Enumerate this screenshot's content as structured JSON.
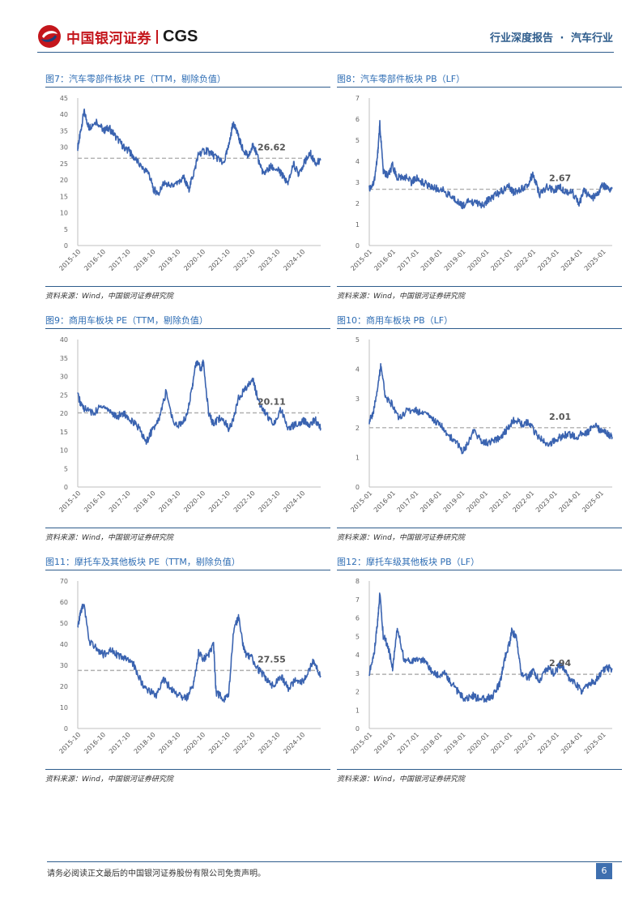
{
  "header": {
    "brand_cn": "中国银河证券",
    "brand_en": "CGS",
    "report_type": "行业深度报告",
    "separator": "·",
    "industry": "汽车行业"
  },
  "footer": {
    "disclaimer": "请务必阅读正文最后的中国银河证券股份有限公司免责声明。",
    "page_number": "6"
  },
  "colors": {
    "line": "#3a63b0",
    "avg": "#b0b0b0",
    "accent": "#2e5c8c"
  },
  "charts": [
    {
      "id": "fig7",
      "title": "图7：汽车零部件板块 PE（TTM，剔除负值）",
      "source": "资料来源：Wind，中国银河证券研究院",
      "chart_data": {
        "type": "line",
        "ylim": [
          0,
          45
        ],
        "yticks": [
          0,
          5,
          10,
          15,
          20,
          25,
          30,
          35,
          40,
          45
        ],
        "xlabels": [
          "2015-10",
          "2016-10",
          "2017-10",
          "2018-10",
          "2019-10",
          "2020-10",
          "2021-10",
          "2022-10",
          "2023-10",
          "2024-10"
        ],
        "x": [
          2015.75,
          2015.85,
          2016.0,
          2016.2,
          2016.5,
          2016.8,
          2017.0,
          2017.3,
          2017.6,
          2017.8,
          2018.0,
          2018.3,
          2018.6,
          2018.8,
          2019.0,
          2019.2,
          2019.5,
          2019.8,
          2020.0,
          2020.2,
          2020.4,
          2020.6,
          2020.9,
          2021.1,
          2021.3,
          2021.6,
          2021.8,
          2022.0,
          2022.2,
          2022.4,
          2022.6,
          2022.8,
          2023.0,
          2023.2,
          2023.5,
          2023.8,
          2024.0,
          2024.2,
          2024.4,
          2024.6,
          2024.9,
          2025.1,
          2025.3,
          2025.5
        ],
        "values": [
          30,
          34,
          41,
          36,
          38,
          35,
          36,
          33,
          30,
          29,
          27,
          24,
          22,
          17,
          16,
          19,
          18,
          19,
          21,
          17,
          22,
          28,
          29,
          28,
          27,
          25,
          30,
          38,
          33,
          29,
          27,
          31,
          26,
          22,
          24,
          23,
          21,
          19,
          25,
          22,
          26,
          28,
          25,
          26
        ],
        "avg": 26.62,
        "avg_label": "26.62"
      }
    },
    {
      "id": "fig8",
      "title": "图8：汽车零部件板块 PB（LF）",
      "source": "资料来源：Wind，中国银河证券研究院",
      "chart_data": {
        "type": "line",
        "ylim": [
          0,
          7
        ],
        "yticks": [
          0,
          1,
          2,
          3,
          4,
          5,
          6,
          7
        ],
        "xlabels": [
          "2015-01",
          "2016-01",
          "2017-01",
          "2018-01",
          "2019-01",
          "2020-01",
          "2021-01",
          "2022-01",
          "2023-01",
          "2024-01",
          "2025-01"
        ],
        "x": [
          2015.0,
          2015.2,
          2015.35,
          2015.45,
          2015.6,
          2015.8,
          2016.0,
          2016.2,
          2016.5,
          2016.8,
          2017.0,
          2017.3,
          2017.6,
          2017.9,
          2018.2,
          2018.5,
          2018.8,
          2019.0,
          2019.3,
          2019.6,
          2019.9,
          2020.1,
          2020.4,
          2020.7,
          2021.0,
          2021.2,
          2021.5,
          2021.8,
          2022.0,
          2022.3,
          2022.6,
          2022.9,
          2023.1,
          2023.4,
          2023.7,
          2024.0,
          2024.2,
          2024.5,
          2024.8,
          2025.0,
          2025.2,
          2025.4
        ],
        "values": [
          2.7,
          3.0,
          4.2,
          5.8,
          3.5,
          3.3,
          3.8,
          3.2,
          3.3,
          3.0,
          3.2,
          3.0,
          2.8,
          2.7,
          2.6,
          2.3,
          2.1,
          1.9,
          2.1,
          2.0,
          1.9,
          2.2,
          2.4,
          2.6,
          2.8,
          2.5,
          2.7,
          2.9,
          3.4,
          2.4,
          2.8,
          2.6,
          2.8,
          2.6,
          2.5,
          2.0,
          2.6,
          2.2,
          2.5,
          2.9,
          2.7,
          2.7
        ],
        "avg": 2.67,
        "avg_label": "2.67"
      }
    },
    {
      "id": "fig9",
      "title": "图9：商用车板块 PE（TTM，剔除负值）",
      "source": "资料来源：Wind，中国银河证券研究院",
      "chart_data": {
        "type": "line",
        "ylim": [
          0,
          40
        ],
        "yticks": [
          0,
          5,
          10,
          15,
          20,
          25,
          30,
          35,
          40
        ],
        "xlabels": [
          "2015-10",
          "2016-10",
          "2017-10",
          "2018-10",
          "2019-10",
          "2020-10",
          "2021-10",
          "2022-10",
          "2023-10",
          "2024-10"
        ],
        "x": [
          2015.75,
          2015.9,
          2016.1,
          2016.4,
          2016.7,
          2017.0,
          2017.3,
          2017.6,
          2017.9,
          2018.2,
          2018.5,
          2018.7,
          2019.0,
          2019.3,
          2019.6,
          2019.9,
          2020.1,
          2020.35,
          2020.5,
          2020.7,
          2020.8,
          2021.0,
          2021.2,
          2021.5,
          2021.8,
          2022.0,
          2022.2,
          2022.5,
          2022.8,
          2023.0,
          2023.3,
          2023.6,
          2023.9,
          2024.2,
          2024.5,
          2024.8,
          2025.0,
          2025.3,
          2025.5
        ],
        "values": [
          25,
          22,
          21,
          20,
          22,
          21,
          19,
          20,
          18,
          16,
          12,
          15,
          18,
          26,
          17,
          17,
          19,
          27,
          34,
          32,
          34,
          20,
          17,
          19,
          16,
          18,
          24,
          27,
          29,
          23,
          20,
          17,
          21,
          16,
          17,
          18,
          17,
          18,
          16
        ],
        "avg": 20.11,
        "avg_label": "20.11"
      }
    },
    {
      "id": "fig10",
      "title": "图10：商用车板块 PB（LF）",
      "source": "资料来源：Wind，中国银河证券研究院",
      "chart_data": {
        "type": "line",
        "ylim": [
          0,
          5
        ],
        "yticks": [
          0,
          1,
          2,
          3,
          4,
          5
        ],
        "xlabels": [
          "2015-01",
          "2016-01",
          "2017-01",
          "2018-01",
          "2019-01",
          "2020-01",
          "2021-01",
          "2022-01",
          "2023-01",
          "2024-01",
          "2025-01"
        ],
        "x": [
          2015.0,
          2015.2,
          2015.4,
          2015.5,
          2015.7,
          2016.0,
          2016.3,
          2016.6,
          2017.0,
          2017.3,
          2017.6,
          2017.9,
          2018.2,
          2018.5,
          2018.8,
          2019.0,
          2019.2,
          2019.5,
          2019.8,
          2020.1,
          2020.4,
          2020.7,
          2021.0,
          2021.3,
          2021.6,
          2021.9,
          2022.2,
          2022.5,
          2022.8,
          2023.0,
          2023.3,
          2023.6,
          2023.9,
          2024.2,
          2024.5,
          2024.8,
          2025.0,
          2025.3,
          2025.5
        ],
        "values": [
          2.2,
          2.6,
          3.6,
          4.1,
          3.0,
          2.8,
          2.3,
          2.6,
          2.6,
          2.5,
          2.4,
          2.2,
          2.0,
          1.7,
          1.5,
          1.2,
          1.4,
          1.9,
          1.6,
          1.5,
          1.6,
          1.7,
          2.0,
          2.3,
          2.1,
          2.2,
          1.8,
          1.6,
          1.4,
          1.6,
          1.7,
          1.8,
          1.7,
          1.8,
          1.9,
          2.1,
          1.9,
          1.8,
          1.7
        ],
        "avg": 2.01,
        "avg_label": "2.01"
      }
    },
    {
      "id": "fig11",
      "title": "图11：摩托车及其他板块 PE（TTM，剔除负值）",
      "source": "资料来源：Wind，中国银河证券研究院",
      "chart_data": {
        "type": "line",
        "ylim": [
          0,
          70
        ],
        "yticks": [
          0,
          10,
          20,
          30,
          40,
          50,
          60,
          70
        ],
        "xlabels": [
          "2015-10",
          "2016-10",
          "2017-10",
          "2018-10",
          "2019-10",
          "2020-10",
          "2021-10",
          "2022-10",
          "2023-10",
          "2024-10"
        ],
        "x": [
          2015.75,
          2015.85,
          2016.0,
          2016.2,
          2016.5,
          2016.8,
          2017.1,
          2017.4,
          2017.7,
          2018.0,
          2018.3,
          2018.6,
          2018.9,
          2019.2,
          2019.5,
          2019.8,
          2020.1,
          2020.4,
          2020.6,
          2020.8,
          2021.0,
          2021.2,
          2021.3,
          2021.6,
          2021.8,
          2022.0,
          2022.2,
          2022.4,
          2022.5,
          2022.7,
          2023.0,
          2023.3,
          2023.6,
          2023.9,
          2024.2,
          2024.5,
          2024.8,
          2025.0,
          2025.2,
          2025.5
        ],
        "values": [
          47,
          55,
          60,
          41,
          38,
          35,
          38,
          34,
          33,
          30,
          22,
          18,
          16,
          23,
          19,
          16,
          14,
          21,
          36,
          33,
          35,
          40,
          17,
          14,
          15,
          46,
          53,
          38,
          35,
          34,
          28,
          24,
          20,
          25,
          19,
          23,
          22,
          27,
          32,
          25
        ],
        "avg": 27.55,
        "avg_label": "27.55"
      }
    },
    {
      "id": "fig12",
      "title": "图12：摩托车级其他板块 PB（LF）",
      "source": "资料来源：Wind，中国银河证券研究院",
      "chart_data": {
        "type": "line",
        "ylim": [
          0,
          8
        ],
        "yticks": [
          0,
          1,
          2,
          3,
          4,
          5,
          6,
          7,
          8
        ],
        "xlabels": [
          "2015-01",
          "2016-01",
          "2017-01",
          "2018-01",
          "2019-01",
          "2020-01",
          "2021-01",
          "2022-01",
          "2023-01",
          "2024-01",
          "2025-01"
        ],
        "x": [
          2015.0,
          2015.2,
          2015.35,
          2015.45,
          2015.6,
          2015.8,
          2016.0,
          2016.2,
          2016.5,
          2016.8,
          2017.0,
          2017.3,
          2017.6,
          2017.9,
          2018.2,
          2018.5,
          2018.8,
          2019.1,
          2019.4,
          2019.7,
          2020.0,
          2020.3,
          2020.6,
          2020.8,
          2021.0,
          2021.1,
          2021.3,
          2021.5,
          2021.8,
          2022.0,
          2022.3,
          2022.6,
          2022.9,
          2023.2,
          2023.5,
          2023.8,
          2024.1,
          2024.4,
          2024.7,
          2025.0,
          2025.2,
          2025.4
        ],
        "values": [
          3.0,
          4.0,
          5.7,
          7.3,
          5.0,
          4.5,
          3.2,
          5.5,
          3.7,
          3.6,
          3.8,
          3.7,
          3.2,
          2.9,
          3.0,
          2.5,
          2.0,
          1.5,
          1.8,
          1.6,
          1.6,
          1.8,
          2.5,
          3.8,
          4.6,
          5.3,
          4.9,
          3.0,
          2.7,
          3.2,
          2.5,
          3.3,
          3.0,
          3.5,
          2.8,
          2.5,
          2.0,
          2.4,
          2.6,
          3.1,
          3.3,
          3.2
        ],
        "avg": 2.94,
        "avg_label": "2.94"
      }
    }
  ]
}
